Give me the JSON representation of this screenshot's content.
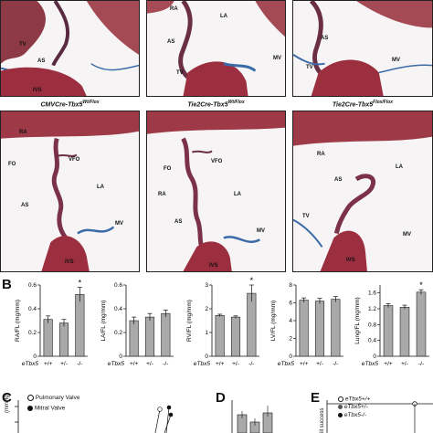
{
  "panel_a_top": [
    {
      "labels": [
        "TV",
        "AS",
        "IVS"
      ]
    },
    {
      "labels": [
        "RA",
        "LA",
        "AS",
        "TV",
        "MV"
      ]
    },
    {
      "labels": [
        "AS",
        "TV",
        "MV"
      ]
    }
  ],
  "panel_a_bottom": [
    {
      "caption_prefix": "CMV",
      "caption_mid": "Cre-",
      "caption_gene": "Tbx5",
      "caption_sup": "Wt/Flox",
      "labels": [
        "RA",
        "FO",
        "VFO",
        "LA",
        "AS",
        "MV",
        "IVS"
      ]
    },
    {
      "caption_prefix": "Tie2",
      "caption_mid": "Cre-",
      "caption_gene": "Tbx5",
      "caption_sup": "Wt/Flox",
      "labels": [
        "FO",
        "VFO",
        "RA",
        "LA",
        "AS",
        "MV",
        "IVS"
      ]
    },
    {
      "caption_prefix": "Tie2",
      "caption_mid": "Cre-",
      "caption_gene": "Tbx5",
      "caption_sup": "Flox/Flox",
      "labels": [
        "RA",
        "LA",
        "AS",
        "TV",
        "MV",
        "IVS"
      ]
    }
  ],
  "panel_letters": {
    "b": "B",
    "c": "C",
    "d": "D",
    "e": "E"
  },
  "genotype_label": "eTbx5",
  "chart_data": [
    {
      "type": "bar",
      "ylabel": "RA/FL (mg/mm)",
      "categories": [
        "+/+",
        "+/-",
        "-/-"
      ],
      "values": [
        0.31,
        0.28,
        0.52
      ],
      "errors": [
        0.03,
        0.03,
        0.06
      ],
      "yticks": [
        "0",
        "0.2",
        "0.4",
        "0.6"
      ],
      "ylim": [
        0,
        0.6
      ],
      "significance": [
        "",
        "",
        "*"
      ]
    },
    {
      "type": "bar",
      "ylabel": "LA/FL (mg/mm)",
      "categories": [
        "+/+",
        "+/-",
        "-/-"
      ],
      "values": [
        0.3,
        0.33,
        0.36
      ],
      "errors": [
        0.03,
        0.03,
        0.03
      ],
      "yticks": [
        "0",
        "0.2",
        "0.4",
        "0.6"
      ],
      "ylim": [
        0,
        0.6
      ],
      "significance": [
        "",
        "",
        ""
      ]
    },
    {
      "type": "bar",
      "ylabel": "RV/FL (mg/mm)",
      "categories": [
        "+/+",
        "+/-",
        "-/-"
      ],
      "values": [
        1.72,
        1.65,
        2.65
      ],
      "errors": [
        0.05,
        0.05,
        0.35
      ],
      "yticks": [
        "0",
        "1",
        "2",
        "3"
      ],
      "ylim": [
        0,
        3
      ],
      "significance": [
        "",
        "",
        "*"
      ]
    },
    {
      "type": "bar",
      "ylabel": "LV/FL (mg/mm)",
      "categories": [
        "+/+",
        "+/-",
        "-/-"
      ],
      "values": [
        6.3,
        6.2,
        6.4
      ],
      "errors": [
        0.25,
        0.3,
        0.3
      ],
      "yticks": [
        "0",
        "2",
        "4",
        "6",
        "8"
      ],
      "ylim": [
        0,
        8
      ],
      "significance": [
        "",
        "",
        ""
      ]
    },
    {
      "type": "bar",
      "ylabel": "Lung/FL (mg/mm)",
      "categories": [
        "+/+",
        "+/-",
        "-/-"
      ],
      "values": [
        1.28,
        1.24,
        1.62
      ],
      "errors": [
        0.05,
        0.05,
        0.06
      ],
      "yticks": [
        "0",
        "0.4",
        "0.8",
        "1.2",
        "1.6"
      ],
      "ylim": [
        0,
        1.8
      ],
      "significance": [
        "",
        "",
        "*"
      ]
    }
  ],
  "panel_c": {
    "ylabel": "(mmHg)",
    "legend": [
      {
        "marker": "open",
        "label": "Pulmonary Valve"
      },
      {
        "marker": "filled",
        "label": "Mitral Valve"
      }
    ]
  },
  "panel_e": {
    "ylabel": "ill success",
    "legend": [
      {
        "label": "eTbx5+/+"
      },
      {
        "label": "eTbx5+/-"
      },
      {
        "label": "eTbx5-/-"
      }
    ]
  }
}
